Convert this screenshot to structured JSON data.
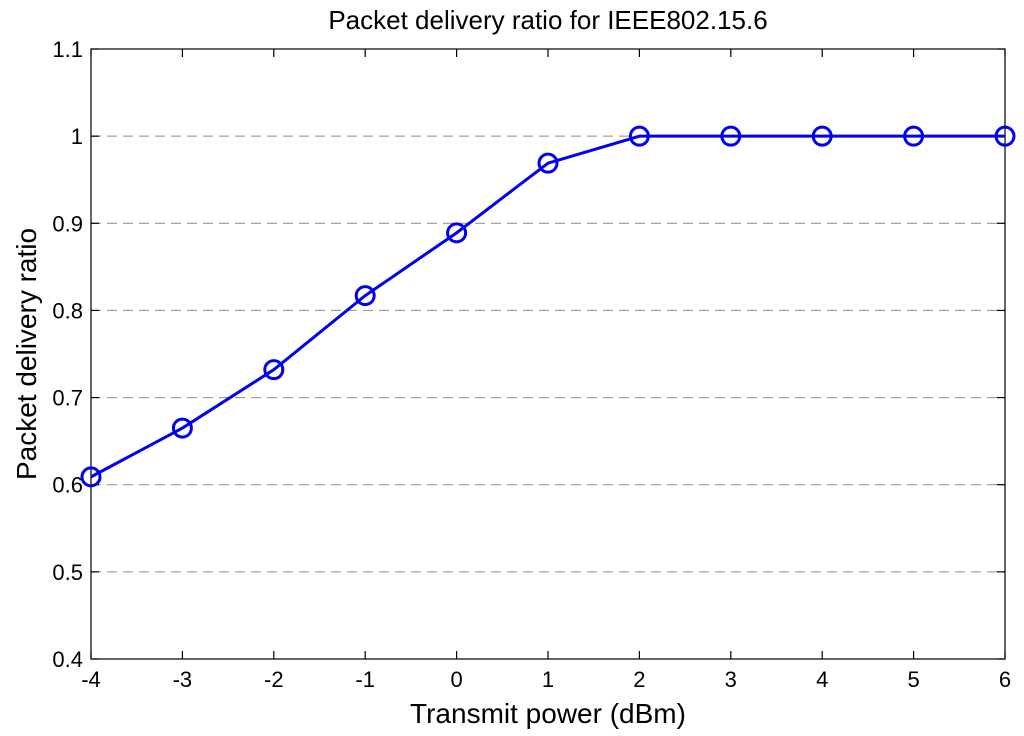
{
  "chart_data": {
    "type": "line",
    "title": "Packet delivery ratio for IEEE802.15.6",
    "xlabel": "Transmit power (dBm)",
    "ylabel": "Packet delivery ratio",
    "xlim": [
      -4,
      6
    ],
    "ylim": [
      0.4,
      1.1
    ],
    "x_ticks": [
      "-4",
      "-3",
      "-2",
      "-1",
      "0",
      "1",
      "2",
      "3",
      "4",
      "5",
      "6"
    ],
    "y_ticks": [
      "0.4",
      "0.5",
      "0.6",
      "0.7",
      "0.8",
      "0.9",
      "1",
      "1.1"
    ],
    "grid": "horizontal dashed",
    "series": [
      {
        "color": "#0000ee",
        "marker": "circle",
        "x": [
          -4,
          -3,
          -2,
          -1,
          0,
          1,
          2,
          3,
          4,
          5,
          6
        ],
        "values": [
          0.609,
          0.665,
          0.732,
          0.817,
          0.889,
          0.969,
          1.0,
          1.0,
          1.0,
          1.0,
          1.0
        ]
      }
    ]
  }
}
